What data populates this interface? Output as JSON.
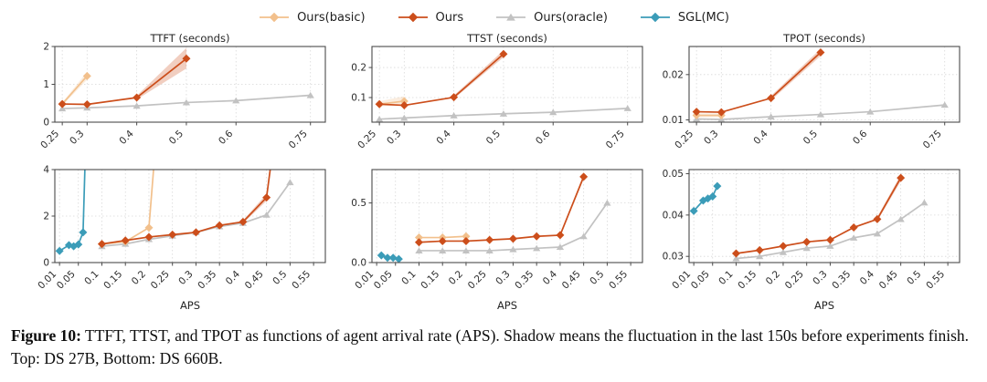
{
  "legend": {
    "items": [
      {
        "name": "Ours(basic)",
        "color": "#f2c08c",
        "marker": "diamond"
      },
      {
        "name": "Ours",
        "color": "#cc4e1b",
        "marker": "diamond"
      },
      {
        "name": "Ours(oracle)",
        "color": "#c2c2c2",
        "marker": "triangle"
      },
      {
        "name": "SGL(MC)",
        "color": "#3b9cb8",
        "marker": "diamond"
      }
    ]
  },
  "caption": {
    "label": "Figure 10:",
    "text": " TTFT, TTST, and TPOT as functions of agent arrival rate (APS). Shadow means the fluctuation in the last 150s before experiments finish. Top: DS 27B, Bottom: DS 660B."
  },
  "chart_data": [
    {
      "type": "line",
      "title": "TTFT (seconds)",
      "xlabel": "",
      "xlim": [
        0.235,
        0.78
      ],
      "ylim": [
        0,
        2
      ],
      "grid": true,
      "legend_position": "top-shared",
      "xticks": [
        {
          "v": 0.25,
          "label": "0.25"
        },
        {
          "v": 0.3,
          "label": "0.3"
        },
        {
          "v": 0.4,
          "label": "0.4"
        },
        {
          "v": 0.5,
          "label": "0.5"
        },
        {
          "v": 0.6,
          "label": "0.6"
        },
        {
          "v": 0.75,
          "label": "0.75"
        }
      ],
      "yticks": [
        {
          "v": 0,
          "label": "0"
        },
        {
          "v": 1,
          "label": "1"
        },
        {
          "v": 2,
          "label": "2"
        }
      ],
      "series": [
        {
          "name": "Ours(oracle)",
          "x": [
            0.25,
            0.3,
            0.4,
            0.5,
            0.6,
            0.75
          ],
          "y": [
            0.36,
            0.38,
            0.43,
            0.52,
            0.57,
            0.71
          ]
        },
        {
          "name": "Ours(basic)",
          "x": [
            0.25,
            0.3
          ],
          "y": [
            0.48,
            1.22
          ],
          "band": [
            [
              0.25,
              0.44,
              0.52
            ],
            [
              0.3,
              1.12,
              1.33
            ]
          ]
        },
        {
          "name": "Ours",
          "x": [
            0.25,
            0.3,
            0.4,
            0.5
          ],
          "y": [
            0.48,
            0.47,
            0.65,
            1.68
          ],
          "band": [
            [
              0.4,
              0.6,
              0.7
            ],
            [
              0.5,
              1.42,
              1.96
            ]
          ]
        }
      ]
    },
    {
      "type": "line",
      "title": "TTST (seconds)",
      "xlabel": "",
      "xlim": [
        0.235,
        0.78
      ],
      "ylim": [
        0.018,
        0.27
      ],
      "grid": true,
      "xticks": [
        {
          "v": 0.25,
          "label": "0.25"
        },
        {
          "v": 0.3,
          "label": "0.3"
        },
        {
          "v": 0.4,
          "label": "0.4"
        },
        {
          "v": 0.5,
          "label": "0.5"
        },
        {
          "v": 0.6,
          "label": "0.6"
        },
        {
          "v": 0.75,
          "label": "0.75"
        }
      ],
      "yticks": [
        {
          "v": 0.1,
          "label": "0.1"
        },
        {
          "v": 0.2,
          "label": "0.2"
        }
      ],
      "series": [
        {
          "name": "Ours(oracle)",
          "x": [
            0.25,
            0.3,
            0.4,
            0.5,
            0.6,
            0.75
          ],
          "y": [
            0.028,
            0.032,
            0.04,
            0.046,
            0.051,
            0.064
          ]
        },
        {
          "name": "Ours(basic)",
          "x": [
            0.25,
            0.3
          ],
          "y": [
            0.078,
            0.088
          ],
          "band": [
            [
              0.25,
              0.07,
              0.088
            ],
            [
              0.3,
              0.076,
              0.104
            ]
          ]
        },
        {
          "name": "Ours",
          "x": [
            0.25,
            0.3,
            0.4,
            0.5
          ],
          "y": [
            0.078,
            0.074,
            0.101,
            0.245
          ],
          "band": [
            [
              0.4,
              0.096,
              0.107
            ],
            [
              0.5,
              0.234,
              0.257
            ]
          ]
        }
      ]
    },
    {
      "type": "line",
      "title": "TPOT (seconds)",
      "xlabel": "",
      "xlim": [
        0.235,
        0.78
      ],
      "ylim": [
        0.0095,
        0.0262
      ],
      "grid": true,
      "xticks": [
        {
          "v": 0.25,
          "label": "0.25"
        },
        {
          "v": 0.3,
          "label": "0.3"
        },
        {
          "v": 0.4,
          "label": "0.4"
        },
        {
          "v": 0.5,
          "label": "0.5"
        },
        {
          "v": 0.6,
          "label": "0.6"
        },
        {
          "v": 0.75,
          "label": "0.75"
        }
      ],
      "yticks": [
        {
          "v": 0.01,
          "label": "0.01"
        },
        {
          "v": 0.02,
          "label": "0.02"
        }
      ],
      "series": [
        {
          "name": "Ours(oracle)",
          "x": [
            0.25,
            0.3,
            0.4,
            0.5,
            0.6,
            0.75
          ],
          "y": [
            0.0102,
            0.0101,
            0.0107,
            0.0112,
            0.0118,
            0.0133
          ]
        },
        {
          "name": "Ours(basic)",
          "x": [
            0.25,
            0.3
          ],
          "y": [
            0.011,
            0.011
          ],
          "band": [
            [
              0.25,
              0.0106,
              0.0114
            ],
            [
              0.3,
              0.0106,
              0.0114
            ]
          ]
        },
        {
          "name": "Ours",
          "x": [
            0.25,
            0.3,
            0.4,
            0.5
          ],
          "y": [
            0.0118,
            0.0117,
            0.0148,
            0.0249
          ],
          "band": [
            [
              0.4,
              0.0143,
              0.0153
            ],
            [
              0.5,
              0.0241,
              0.0257
            ]
          ]
        }
      ]
    },
    {
      "type": "line",
      "title": "",
      "xlabel": "APS",
      "xlim": [
        0,
        0.575
      ],
      "ylim": [
        0,
        4
      ],
      "grid": true,
      "xticks": [
        {
          "v": 0.01,
          "label": "0.01"
        },
        {
          "v": 0.05,
          "label": "0.05"
        },
        {
          "v": 0.1,
          "label": "0.1"
        },
        {
          "v": 0.15,
          "label": "0.15"
        },
        {
          "v": 0.2,
          "label": "0.2"
        },
        {
          "v": 0.25,
          "label": "0.25"
        },
        {
          "v": 0.3,
          "label": "0.3"
        },
        {
          "v": 0.35,
          "label": "0.35"
        },
        {
          "v": 0.4,
          "label": "0.4"
        },
        {
          "v": 0.45,
          "label": "0.45"
        },
        {
          "v": 0.5,
          "label": "0.5"
        },
        {
          "v": 0.55,
          "label": "0.55"
        }
      ],
      "yticks": [
        {
          "v": 0,
          "label": "0"
        },
        {
          "v": 2,
          "label": "2"
        },
        {
          "v": 4,
          "label": "4"
        }
      ],
      "series": [
        {
          "name": "SGL(MC)",
          "x": [
            0.01,
            0.03,
            0.04,
            0.05,
            0.06,
            0.065
          ],
          "y": [
            0.5,
            0.75,
            0.7,
            0.78,
            1.3,
            4.8
          ]
        },
        {
          "name": "Ours(oracle)",
          "x": [
            0.1,
            0.15,
            0.2,
            0.25,
            0.3,
            0.35,
            0.4,
            0.45,
            0.5
          ],
          "y": [
            0.7,
            0.8,
            1.0,
            1.15,
            1.3,
            1.55,
            1.7,
            2.05,
            3.45
          ]
        },
        {
          "name": "Ours(basic)",
          "x": [
            0.1,
            0.15,
            0.2,
            0.213
          ],
          "y": [
            0.8,
            0.9,
            1.5,
            4.8
          ]
        },
        {
          "name": "Ours",
          "x": [
            0.1,
            0.15,
            0.2,
            0.25,
            0.3,
            0.35,
            0.4,
            0.45,
            0.463
          ],
          "y": [
            0.8,
            0.95,
            1.1,
            1.2,
            1.3,
            1.6,
            1.75,
            2.8,
            4.8
          ],
          "band": [
            [
              0.4,
              1.68,
              1.82
            ],
            [
              0.45,
              2.65,
              2.95
            ]
          ]
        }
      ]
    },
    {
      "type": "line",
      "title": "",
      "xlabel": "APS",
      "xlim": [
        0,
        0.575
      ],
      "ylim": [
        0,
        0.78
      ],
      "grid": true,
      "xticks": [
        {
          "v": 0.01,
          "label": "0.01"
        },
        {
          "v": 0.05,
          "label": "0.05"
        },
        {
          "v": 0.1,
          "label": "0.1"
        },
        {
          "v": 0.15,
          "label": "0.15"
        },
        {
          "v": 0.2,
          "label": "0.2"
        },
        {
          "v": 0.25,
          "label": "0.25"
        },
        {
          "v": 0.3,
          "label": "0.3"
        },
        {
          "v": 0.35,
          "label": "0.35"
        },
        {
          "v": 0.4,
          "label": "0.4"
        },
        {
          "v": 0.45,
          "label": "0.45"
        },
        {
          "v": 0.5,
          "label": "0.5"
        },
        {
          "v": 0.55,
          "label": "0.55"
        }
      ],
      "yticks": [
        {
          "v": 0.0,
          "label": "0.0"
        },
        {
          "v": 0.5,
          "label": "0.5"
        }
      ],
      "series": [
        {
          "name": "SGL(MC)",
          "x": [
            0.02,
            0.033,
            0.045,
            0.057
          ],
          "y": [
            0.06,
            0.04,
            0.04,
            0.03
          ]
        },
        {
          "name": "Ours(oracle)",
          "x": [
            0.1,
            0.15,
            0.2,
            0.25,
            0.3,
            0.35,
            0.4,
            0.45,
            0.5
          ],
          "y": [
            0.1,
            0.1,
            0.1,
            0.1,
            0.11,
            0.12,
            0.13,
            0.22,
            0.5
          ]
        },
        {
          "name": "Ours(basic)",
          "x": [
            0.1,
            0.15,
            0.2
          ],
          "y": [
            0.21,
            0.21,
            0.22
          ]
        },
        {
          "name": "Ours",
          "x": [
            0.1,
            0.15,
            0.2,
            0.25,
            0.3,
            0.35,
            0.4,
            0.45
          ],
          "y": [
            0.17,
            0.18,
            0.18,
            0.19,
            0.2,
            0.22,
            0.23,
            0.72
          ],
          "band": [
            [
              0.4,
              0.225,
              0.235
            ],
            [
              0.45,
              0.7,
              0.74
            ]
          ]
        }
      ]
    },
    {
      "type": "line",
      "title": "",
      "xlabel": "APS",
      "xlim": [
        0,
        0.575
      ],
      "ylim": [
        0.0285,
        0.051
      ],
      "grid": true,
      "xticks": [
        {
          "v": 0.01,
          "label": "0.01"
        },
        {
          "v": 0.05,
          "label": "0.05"
        },
        {
          "v": 0.1,
          "label": "0.1"
        },
        {
          "v": 0.15,
          "label": "0.15"
        },
        {
          "v": 0.2,
          "label": "0.2"
        },
        {
          "v": 0.25,
          "label": "0.25"
        },
        {
          "v": 0.3,
          "label": "0.3"
        },
        {
          "v": 0.35,
          "label": "0.35"
        },
        {
          "v": 0.4,
          "label": "0.4"
        },
        {
          "v": 0.45,
          "label": "0.45"
        },
        {
          "v": 0.5,
          "label": "0.5"
        },
        {
          "v": 0.55,
          "label": "0.55"
        }
      ],
      "yticks": [
        {
          "v": 0.03,
          "label": "0.03"
        },
        {
          "v": 0.04,
          "label": "0.04"
        },
        {
          "v": 0.05,
          "label": "0.05"
        }
      ],
      "series": [
        {
          "name": "SGL(MC)",
          "x": [
            0.01,
            0.03,
            0.04,
            0.05,
            0.06
          ],
          "y": [
            0.041,
            0.0435,
            0.044,
            0.0445,
            0.047
          ]
        },
        {
          "name": "Ours(oracle)",
          "x": [
            0.1,
            0.15,
            0.2,
            0.25,
            0.3,
            0.35,
            0.4,
            0.45,
            0.5
          ],
          "y": [
            0.0295,
            0.03,
            0.031,
            0.032,
            0.0325,
            0.0345,
            0.0355,
            0.039,
            0.043
          ]
        },
        {
          "name": "Ours",
          "x": [
            0.1,
            0.15,
            0.2,
            0.25,
            0.3,
            0.35,
            0.4,
            0.45
          ],
          "y": [
            0.0307,
            0.0315,
            0.0325,
            0.0335,
            0.034,
            0.037,
            0.039,
            0.049
          ],
          "band": [
            [
              0.4,
              0.0385,
              0.0395
            ],
            [
              0.45,
              0.0482,
              0.0498
            ]
          ]
        }
      ]
    }
  ]
}
